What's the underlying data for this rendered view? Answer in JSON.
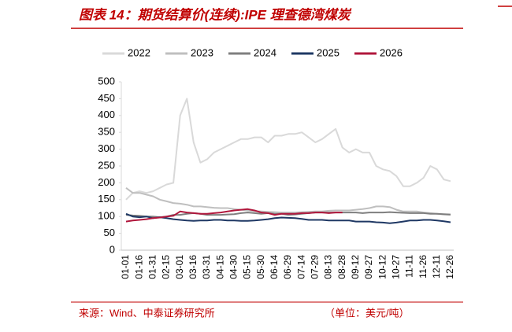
{
  "chart_data": {
    "type": "line",
    "title": "图表 14：期货结算价(连续):IPE 理查德湾煤炭",
    "source": "来源：Wind、中泰证券研究所",
    "unit": "（单位：美元/吨）",
    "categories": [
      "01-01",
      null,
      "01-16",
      null,
      "01-31",
      null,
      "02-15",
      null,
      "03-01",
      null,
      "03-16",
      null,
      "03-31",
      null,
      "04-15",
      null,
      "04-30",
      null,
      "05-15",
      null,
      "05-30",
      null,
      "06-14",
      null,
      "06-29",
      null,
      "07-14",
      null,
      "07-29",
      null,
      "08-13",
      null,
      "08-28",
      null,
      "09-12",
      null,
      "09-27",
      null,
      "10-12",
      null,
      "10-27",
      null,
      "11-11",
      null,
      "11-26",
      null,
      "12-11",
      null,
      "12-26"
    ],
    "ylim": [
      0,
      500
    ],
    "yticks": [
      0,
      50,
      100,
      150,
      200,
      250,
      300,
      350,
      400,
      450,
      500
    ],
    "legend": "top",
    "series": [
      {
        "name": "2022",
        "color": "#d9d9d9",
        "values": [
          150,
          170,
          175,
          170,
          175,
          185,
          195,
          200,
          400,
          450,
          320,
          260,
          270,
          290,
          300,
          310,
          320,
          330,
          330,
          335,
          335,
          320,
          340,
          340,
          345,
          345,
          350,
          335,
          320,
          330,
          345,
          360,
          305,
          290,
          300,
          290,
          290,
          250,
          240,
          235,
          220,
          190,
          190,
          200,
          215,
          250,
          240,
          210,
          205
        ]
      },
      {
        "name": "2023",
        "color": "#bfbfbf",
        "values": [
          185,
          170,
          170,
          165,
          160,
          150,
          145,
          140,
          138,
          135,
          130,
          130,
          128,
          126,
          125,
          125,
          122,
          120,
          118,
          116,
          115,
          114,
          113,
          112,
          112,
          112,
          113,
          114,
          115,
          115,
          117,
          118,
          118,
          118,
          120,
          122,
          125,
          130,
          130,
          128,
          120,
          115,
          115,
          115,
          112,
          110,
          108,
          106,
          105
        ]
      },
      {
        "name": "2024",
        "color": "#7f7f7f",
        "values": [
          105,
          103,
          102,
          100,
          100,
          98,
          100,
          105,
          105,
          108,
          110,
          108,
          105,
          105,
          105,
          106,
          107,
          110,
          112,
          110,
          108,
          110,
          108,
          108,
          105,
          106,
          108,
          110,
          112,
          112,
          112,
          112,
          112,
          112,
          112,
          110,
          112,
          112,
          112,
          113,
          112,
          111,
          110,
          110,
          110,
          108,
          108,
          107,
          106
        ]
      },
      {
        "name": "2025",
        "color": "#1f3864",
        "values": [
          108,
          100,
          98,
          100,
          95,
          98,
          95,
          92,
          90,
          88,
          87,
          88,
          88,
          90,
          90,
          88,
          88,
          87,
          87,
          88,
          90,
          92,
          95,
          97,
          96,
          95,
          93,
          90,
          90,
          90,
          88,
          88,
          88,
          88,
          85,
          85,
          85,
          83,
          82,
          80,
          82,
          85,
          88,
          88,
          90,
          90,
          88,
          86,
          83
        ]
      },
      {
        "name": "2026",
        "color": "#b0173c",
        "values": [
          85,
          88,
          90,
          92,
          95,
          97,
          100,
          102,
          115,
          112,
          110,
          108,
          108,
          110,
          112,
          115,
          118,
          120,
          122,
          118,
          112,
          110,
          105,
          108,
          108,
          108,
          110,
          110,
          112,
          112,
          110,
          112,
          112,
          null,
          null,
          null,
          null,
          null,
          null,
          null,
          null,
          null,
          null,
          null,
          null,
          null,
          null,
          null,
          null
        ]
      }
    ]
  }
}
